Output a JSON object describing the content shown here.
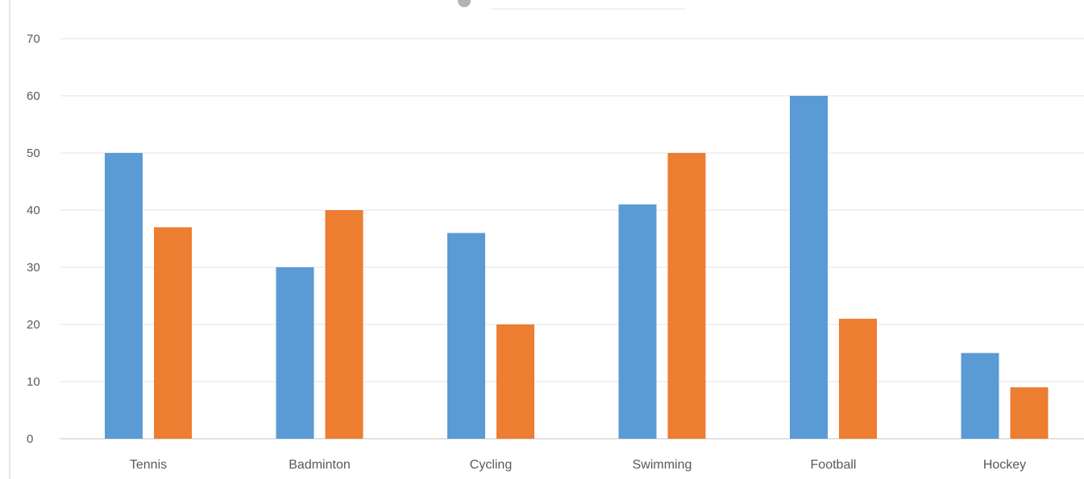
{
  "chart_data": {
    "type": "bar",
    "title": "",
    "xlabel": "",
    "ylabel": "",
    "categories": [
      "Tennis",
      "Badminton",
      "Cycling",
      "Swimming",
      "Football",
      "Hockey"
    ],
    "series": [
      {
        "color": "#5B9BD5",
        "values": [
          50,
          30,
          36,
          41,
          60,
          15
        ]
      },
      {
        "color": "#ED7D31",
        "values": [
          37,
          40,
          20,
          50,
          21,
          9
        ]
      }
    ],
    "ylim": [
      0,
      70
    ],
    "yticks": [
      0,
      10,
      20,
      30,
      40,
      50,
      60,
      70
    ],
    "grid": true,
    "legend": "none"
  }
}
